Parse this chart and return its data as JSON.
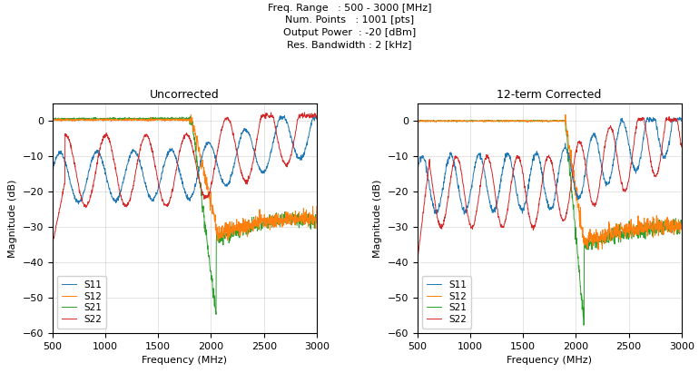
{
  "title_lines": [
    "Freq. Range   : 500 - 3000 [MHz]",
    "Num. Points   : 1001 [pts]",
    "Output Power  : -20 [dBm]",
    "Res. Bandwidth : 2 [kHz]"
  ],
  "left_title": "Uncorrected",
  "right_title": "12-term Corrected",
  "xlabel": "Frequency (MHz)",
  "ylabel": "Magnitude (dB)",
  "freq_start": 500,
  "freq_end": 3000,
  "num_points": 1001,
  "ylim": [
    -60,
    5
  ],
  "yticks": [
    -60,
    -50,
    -40,
    -30,
    -20,
    -10,
    0
  ],
  "xticks": [
    500,
    1000,
    1500,
    2000,
    2500,
    3000
  ],
  "colors": {
    "S11": "#1f77b4",
    "S12": "#ff7f0e",
    "S21": "#2ca02c",
    "S22": "#d62728"
  },
  "legend_labels": [
    "S11",
    "S12",
    "S21",
    "S22"
  ],
  "background_color": "#ffffff"
}
